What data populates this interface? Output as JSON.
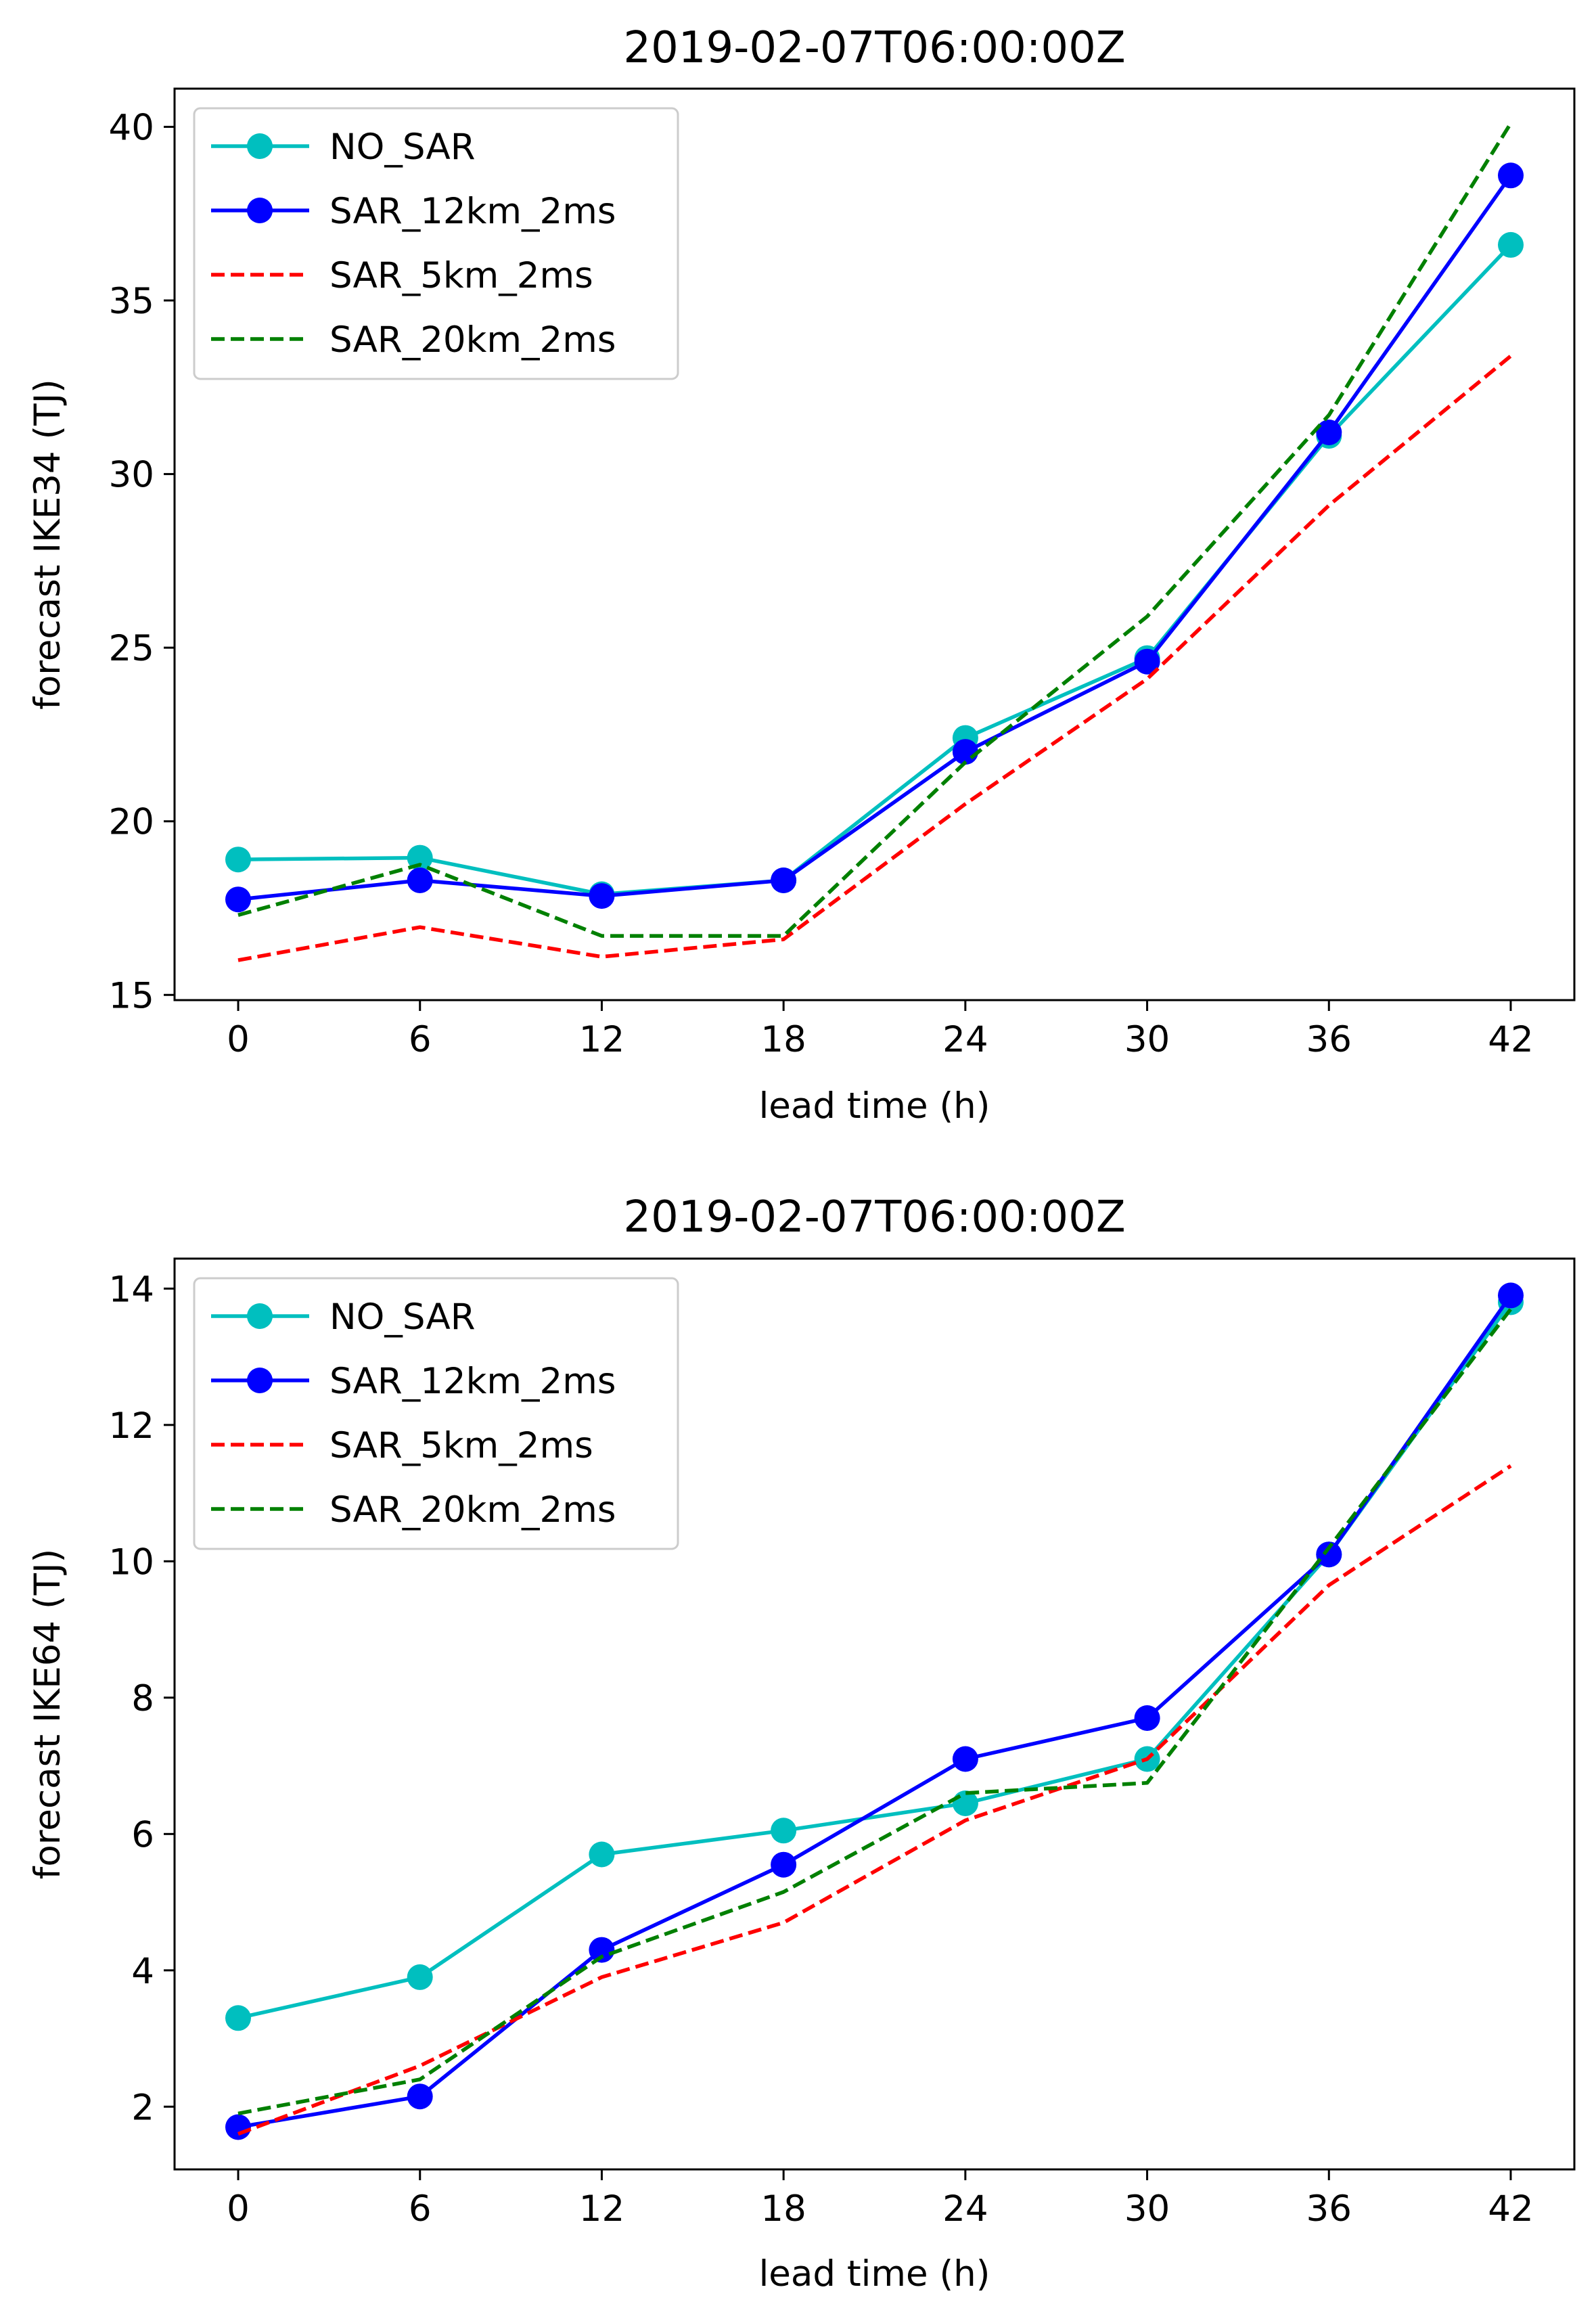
{
  "chart_data": [
    {
      "type": "line",
      "title": "2019-02-07T06:00:00Z",
      "xlabel": "lead time (h)",
      "ylabel": "forecast IKE34 (TJ)",
      "x": [
        0,
        6,
        12,
        18,
        24,
        30,
        36,
        42
      ],
      "xticks": [
        "0",
        "6",
        "12",
        "18",
        "24",
        "30",
        "36",
        "42"
      ],
      "xlim": [
        -2.1,
        44.1
      ],
      "yticks": [
        "15",
        "20",
        "25",
        "30",
        "35",
        "40"
      ],
      "ylim": [
        14.85,
        41.1
      ],
      "legend_position": "upper-left",
      "series": [
        {
          "name": "NO_SAR",
          "color": "#00bfbf",
          "style": "solid-marker",
          "values": [
            18.9,
            18.95,
            17.9,
            18.3,
            22.4,
            24.7,
            31.1,
            36.6
          ]
        },
        {
          "name": "SAR_12km_2ms",
          "color": "#0000ff",
          "style": "solid-marker",
          "values": [
            17.75,
            18.3,
            17.85,
            18.3,
            22.0,
            24.6,
            31.2,
            38.6
          ]
        },
        {
          "name": "SAR_5km_2ms",
          "color": "#ff0000",
          "style": "dashed",
          "values": [
            16.0,
            16.95,
            16.1,
            16.6,
            20.5,
            24.1,
            29.1,
            33.4
          ]
        },
        {
          "name": "SAR_20km_2ms",
          "color": "#008000",
          "style": "dashed",
          "values": [
            17.3,
            18.75,
            16.7,
            16.7,
            21.7,
            25.9,
            31.7,
            40.1
          ]
        }
      ]
    },
    {
      "type": "line",
      "title": "2019-02-07T06:00:00Z",
      "xlabel": "lead time (h)",
      "ylabel": "forecast IKE64 (TJ)",
      "x": [
        0,
        6,
        12,
        18,
        24,
        30,
        36,
        42
      ],
      "xticks": [
        "0",
        "6",
        "12",
        "18",
        "24",
        "30",
        "36",
        "42"
      ],
      "xlim": [
        -2.1,
        44.1
      ],
      "yticks": [
        "2",
        "4",
        "6",
        "8",
        "10",
        "12",
        "14"
      ],
      "ylim": [
        1.08,
        14.44
      ],
      "legend_position": "upper-left",
      "series": [
        {
          "name": "NO_SAR",
          "color": "#00bfbf",
          "style": "solid-marker",
          "values": [
            3.3,
            3.9,
            5.7,
            6.05,
            6.45,
            7.1,
            10.1,
            13.8
          ]
        },
        {
          "name": "SAR_12km_2ms",
          "color": "#0000ff",
          "style": "solid-marker",
          "values": [
            1.7,
            2.15,
            4.3,
            5.55,
            7.1,
            7.7,
            10.1,
            13.9
          ]
        },
        {
          "name": "SAR_5km_2ms",
          "color": "#ff0000",
          "style": "dashed",
          "values": [
            1.6,
            2.6,
            3.9,
            4.7,
            6.2,
            7.1,
            9.65,
            11.4
          ]
        },
        {
          "name": "SAR_20km_2ms",
          "color": "#008000",
          "style": "dashed",
          "values": [
            1.9,
            2.4,
            4.2,
            5.15,
            6.6,
            6.75,
            10.2,
            13.7
          ]
        }
      ]
    }
  ]
}
